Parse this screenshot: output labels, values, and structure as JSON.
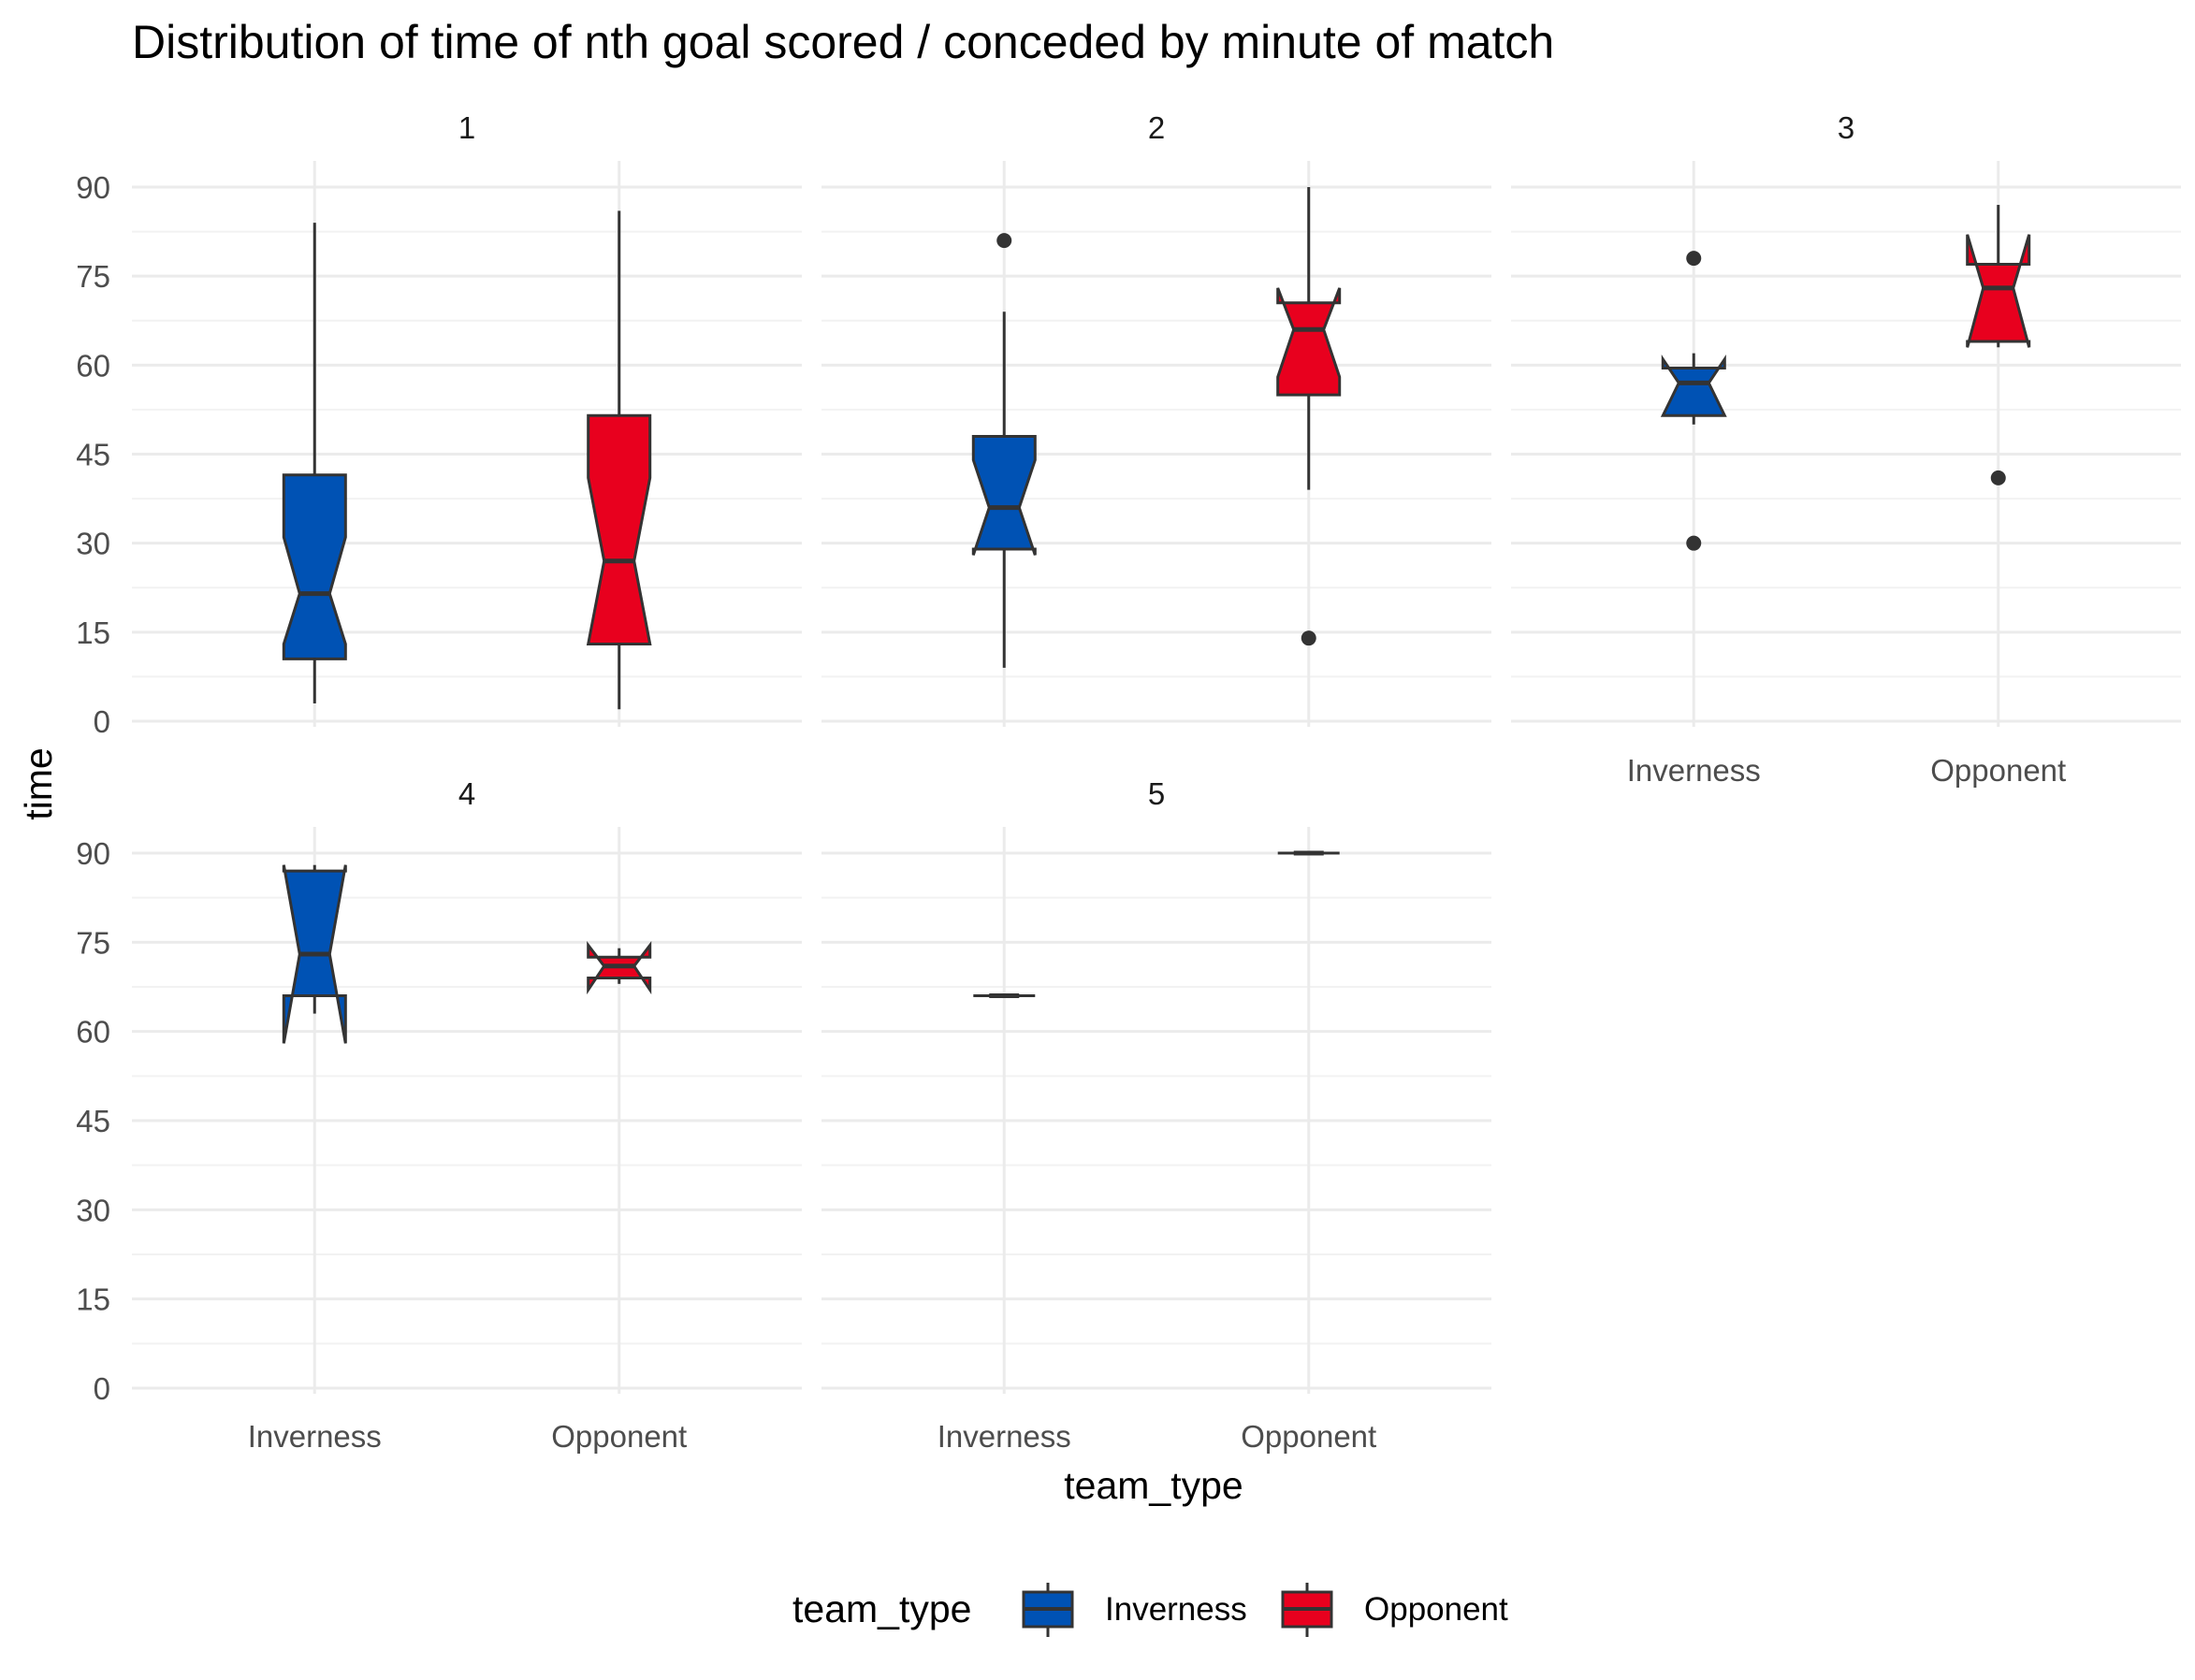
{
  "chart_data": {
    "type": "boxplot",
    "title": "Distribution of time of nth goal scored / conceded by minute of match",
    "xlabel": "team_type",
    "ylabel": "time",
    "ylim": [
      0,
      90
    ],
    "y_ticks": [
      0,
      15,
      30,
      45,
      60,
      75,
      90
    ],
    "categories": [
      "Inverness",
      "Opponent"
    ],
    "notched": true,
    "facets": [
      {
        "label": "1",
        "boxes": [
          {
            "category": "Inverness",
            "lower_whisker": 3,
            "q1": 10.5,
            "median": 21.5,
            "q3": 41.5,
            "upper_whisker": 84,
            "notch_low": 13,
            "notch_high": 31,
            "outliers": []
          },
          {
            "category": "Opponent",
            "lower_whisker": 2,
            "q1": 13,
            "median": 27,
            "q3": 51.5,
            "upper_whisker": 86,
            "notch_low": 13,
            "notch_high": 41,
            "outliers": []
          }
        ]
      },
      {
        "label": "2",
        "boxes": [
          {
            "category": "Inverness",
            "lower_whisker": 9,
            "q1": 29,
            "median": 36,
            "q3": 48,
            "upper_whisker": 69,
            "notch_low": 28,
            "notch_high": 44,
            "outliers": [
              81
            ]
          },
          {
            "category": "Opponent",
            "lower_whisker": 39,
            "q1": 55,
            "median": 66,
            "q3": 70.5,
            "upper_whisker": 90,
            "notch_low": 58,
            "notch_high": 73,
            "outliers": [
              14
            ]
          }
        ]
      },
      {
        "label": "3",
        "boxes": [
          {
            "category": "Inverness",
            "lower_whisker": 50,
            "q1": 51.5,
            "median": 57,
            "q3": 59.5,
            "upper_whisker": 62,
            "notch_low": 51.5,
            "notch_high": 61,
            "outliers": [
              78,
              30
            ]
          },
          {
            "category": "Opponent",
            "lower_whisker": 63,
            "q1": 64,
            "median": 73,
            "q3": 77,
            "upper_whisker": 87,
            "notch_low": 63,
            "notch_high": 82,
            "outliers": [
              41
            ]
          }
        ]
      },
      {
        "label": "4",
        "boxes": [
          {
            "category": "Inverness",
            "lower_whisker": 63,
            "q1": 66,
            "median": 73,
            "q3": 87,
            "upper_whisker": 88,
            "notch_low": 58,
            "notch_high": 88,
            "outliers": []
          },
          {
            "category": "Opponent",
            "lower_whisker": 68,
            "q1": 69,
            "median": 71,
            "q3": 72.5,
            "upper_whisker": 74,
            "notch_low": 67,
            "notch_high": 74.5,
            "outliers": []
          }
        ]
      },
      {
        "label": "5",
        "boxes": [
          {
            "category": "Inverness",
            "lower_whisker": 66,
            "q1": 66,
            "median": 66,
            "q3": 66,
            "upper_whisker": 66,
            "notch_low": 66,
            "notch_high": 66,
            "outliers": []
          },
          {
            "category": "Opponent",
            "lower_whisker": 90,
            "q1": 90,
            "median": 90,
            "q3": 90,
            "upper_whisker": 90,
            "notch_low": 90,
            "notch_high": 90,
            "outliers": []
          }
        ]
      }
    ],
    "legend": {
      "title": "team_type",
      "position": "bottom",
      "items": [
        {
          "label": "Inverness",
          "color": "#0052b4"
        },
        {
          "label": "Opponent",
          "color": "#e8001e"
        }
      ]
    },
    "colors": {
      "Inverness": "#0052b4",
      "Opponent": "#e8001e"
    }
  }
}
